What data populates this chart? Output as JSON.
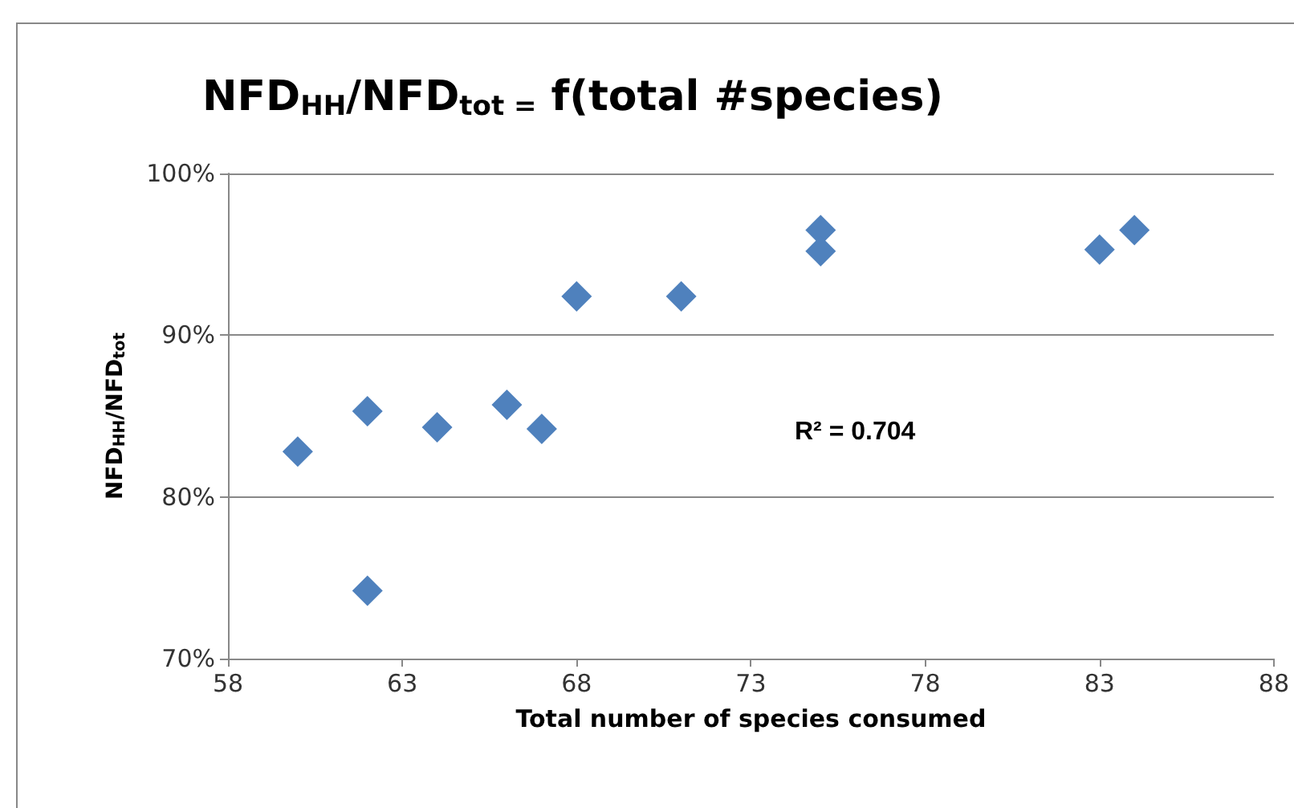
{
  "chart_data": {
    "type": "scatter",
    "title": "NFD$_{HH}$/NFD$_{tot =}$ f(total #species)",
    "xlabel": "Total number of species consumed",
    "ylabel": "NFD$_{HH}$/NFD$_{tot}$",
    "annotations": [
      "R² = 0.704"
    ],
    "x": [
      60,
      62,
      62,
      64,
      66,
      67,
      68,
      71,
      75,
      75,
      83,
      84
    ],
    "series": [
      {
        "color": "#4f81bd",
        "values": [
          82.8,
          85.3,
          74.2,
          84.3,
          85.7,
          84.2,
          92.4,
          92.4,
          96.5,
          95.2,
          95.3,
          96.5
        ]
      }
    ],
    "xlim": [
      58,
      88
    ],
    "xticks": [
      58,
      63,
      68,
      73,
      78,
      83,
      88
    ],
    "ylim": [
      70,
      100
    ],
    "yticks": [
      {
        "value": 70,
        "label": "70%"
      },
      {
        "value": 80,
        "label": "80%"
      },
      {
        "value": 90,
        "label": "90%"
      },
      {
        "value": 100,
        "label": "100%"
      }
    ],
    "grid": "y",
    "marker": "diamond"
  }
}
